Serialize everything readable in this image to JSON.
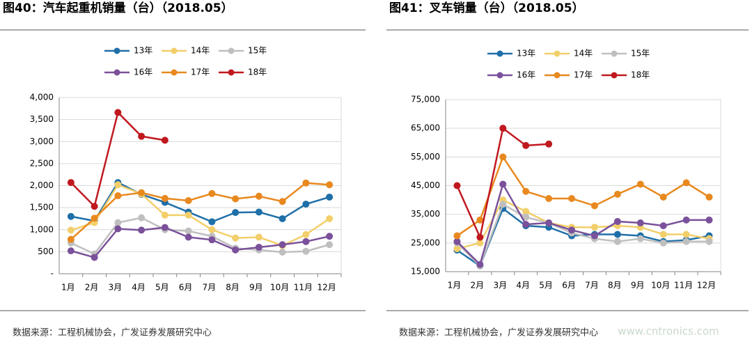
{
  "chart_data": [
    {
      "type": "line",
      "title": "图40：汽车起重机销量（台）（2018.05）",
      "categories": [
        "1月",
        "2月",
        "3月",
        "4月",
        "5月",
        "6月",
        "7月",
        "8月",
        "9月",
        "10月",
        "11月",
        "12月"
      ],
      "ylim": [
        0,
        4000
      ],
      "yticks": [
        {
          "value": 0,
          "label": "-"
        },
        500,
        {
          "value": 1000,
          "label": "1,000"
        },
        {
          "value": 1500,
          "label": "1,500"
        },
        {
          "value": 2000,
          "label": "2,000"
        },
        {
          "value": 2500,
          "label": "2,500"
        },
        {
          "value": 3000,
          "label": "3,000"
        },
        {
          "value": 3500,
          "label": "3,500"
        },
        {
          "value": 4000,
          "label": "4,000"
        }
      ],
      "grid": true,
      "series": [
        {
          "name": "13年",
          "color": "#1f6fa8",
          "values": [
            1300,
            1200,
            2070,
            1800,
            1620,
            1400,
            1180,
            1390,
            1400,
            1250,
            1580,
            1740
          ]
        },
        {
          "name": "14年",
          "color": "#f2cf6b",
          "values": [
            990,
            1160,
            2020,
            1810,
            1330,
            1330,
            1000,
            810,
            830,
            640,
            890,
            1250
          ]
        },
        {
          "name": "15年",
          "color": "#bfbfbf",
          "values": [
            700,
            450,
            1160,
            1270,
            1000,
            970,
            850,
            580,
            540,
            490,
            510,
            660
          ]
        },
        {
          "name": "16年",
          "color": "#7a519a",
          "values": [
            520,
            370,
            1020,
            990,
            1050,
            830,
            770,
            540,
            600,
            660,
            730,
            850
          ]
        },
        {
          "name": "17年",
          "color": "#e8891f",
          "values": [
            780,
            1260,
            1770,
            1840,
            1710,
            1660,
            1820,
            1700,
            1760,
            1640,
            2060,
            2020
          ]
        },
        {
          "name": "18年",
          "color": "#c0181f",
          "values": [
            2070,
            1530,
            3660,
            3120,
            3030,
            null,
            null,
            null,
            null,
            null,
            null,
            null
          ]
        }
      ],
      "source": "数据来源：工程机械协会，广发证券发展研究中心"
    },
    {
      "type": "line",
      "title": "图41：叉车销量（台）（2018.05）",
      "categories": [
        "1月",
        "2月",
        "3月",
        "4月",
        "5月",
        "6月",
        "7月",
        "8月",
        "9月",
        "10月",
        "11月",
        "12月"
      ],
      "ylim": [
        15000,
        75000
      ],
      "yticks": [
        {
          "value": 15000,
          "label": "15,000"
        },
        {
          "value": 25000,
          "label": "25,000"
        },
        {
          "value": 35000,
          "label": "35,000"
        },
        {
          "value": 45000,
          "label": "45,000"
        },
        {
          "value": 55000,
          "label": "55,000"
        },
        {
          "value": 65000,
          "label": "65,000"
        },
        {
          "value": 75000,
          "label": "75,000"
        }
      ],
      "grid": true,
      "series": [
        {
          "name": "13年",
          "color": "#1f6fa8",
          "values": [
            22500,
            17000,
            37000,
            31000,
            30500,
            27500,
            28000,
            28000,
            27500,
            25500,
            26000,
            27500
          ]
        },
        {
          "name": "14年",
          "color": "#f2cf6b",
          "values": [
            23000,
            25000,
            40000,
            36000,
            32000,
            30500,
            30500,
            31000,
            30500,
            28000,
            28000,
            26500
          ]
        },
        {
          "name": "15年",
          "color": "#bfbfbf",
          "values": [
            25000,
            17000,
            38500,
            34000,
            32000,
            28500,
            26500,
            25500,
            26500,
            25000,
            25500,
            25500
          ]
        },
        {
          "name": "16年",
          "color": "#7a519a",
          "values": [
            25500,
            17500,
            45500,
            31500,
            32000,
            29500,
            27500,
            32500,
            32000,
            31000,
            33000,
            33000
          ]
        },
        {
          "name": "17年",
          "color": "#e8891f",
          "values": [
            27500,
            33000,
            55000,
            43000,
            40500,
            40500,
            38000,
            42000,
            45500,
            41000,
            46000,
            41000
          ]
        },
        {
          "name": "18年",
          "color": "#c0181f",
          "values": [
            45000,
            27000,
            65000,
            59000,
            59500,
            null,
            null,
            null,
            null,
            null,
            null,
            null
          ]
        }
      ],
      "source": "数据来源：工程机械协会，广发证券发展研究中心"
    }
  ],
  "watermark": "www.cntronics.com"
}
